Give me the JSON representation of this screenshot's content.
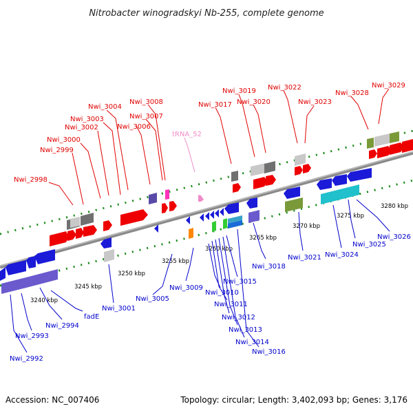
{
  "header": {
    "title": "Nitrobacter winogradskyi Nb-255, complete genome"
  },
  "footer": {
    "accession": "Accession: NC_007406",
    "summary": "Topology: circular; Length: 3,402,093 bp; Genes: 3,176"
  },
  "colors": {
    "forward_label": "#e00000",
    "reverse_label": "#0000cc",
    "rna_label": "#f08cc8",
    "backbone": "#888888",
    "tick": "#1a8a1a",
    "gene_red": "#ee0000",
    "gene_blue": "#1a1ad8",
    "gene_purple": "#6a5acd",
    "gene_gray": "#c8c8c8",
    "gene_darkgray": "#707070",
    "gene_olive": "#7a9a3a",
    "gene_cyan": "#20c0cc",
    "gene_magenta": "#ff33bb",
    "gene_orange": "#ff8800",
    "gene_green": "#33cc33"
  },
  "scale_labels": [
    "3240 kbp",
    "3245 kbp",
    "3250 kbp",
    "3255 kbp",
    "3260 kbp",
    "3265 kbp",
    "3270 kbp",
    "3275 kbp",
    "3280 kbp"
  ],
  "forward_labels": [
    "Nwi_2998",
    "Nwi_2999",
    "Nwi_3000",
    "Nwi_3002",
    "Nwi_3003",
    "Nwi_3004",
    "Nwi_3006",
    "Nwi_3007",
    "Nwi_3008",
    "Nwi_3017",
    "Nwi_3019",
    "Nwi_3020",
    "Nwi_3022",
    "Nwi_3023",
    "Nwi_3028",
    "Nwi_3029"
  ],
  "rna_labels": [
    "tRNA_52"
  ],
  "reverse_labels": [
    "Nwi_2992",
    "Nwi_2993",
    "Nwi_2994",
    "fadE",
    "Nwi_3001",
    "Nwi_3005",
    "Nwi_3009",
    "Nwi_3010",
    "Nwi_3011",
    "Nwi_3012",
    "Nwi_3013",
    "Nwi_3014",
    "Nwi_3015",
    "Nwi_3016",
    "Nwi_3018",
    "Nwi_3021",
    "Nwi_3024",
    "Nwi_3025",
    "Nwi_3026"
  ]
}
